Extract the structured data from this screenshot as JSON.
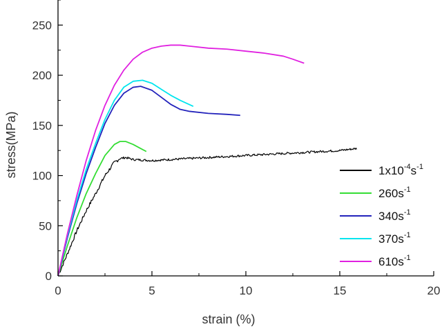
{
  "chart_data": {
    "type": "line",
    "title": "",
    "xlabel": "strain (%)",
    "ylabel": "stress(MPa)",
    "xlim": [
      0,
      20
    ],
    "ylim": [
      0,
      275
    ],
    "xticks": [
      0,
      5,
      10,
      15,
      20
    ],
    "yticks": [
      0,
      50,
      100,
      150,
      200,
      250
    ],
    "legend_position": "right",
    "grid": false,
    "series": [
      {
        "name_base": "1x10",
        "name_exp": "-4",
        "name_unit": "s",
        "name_unit_exp": "-1",
        "color": "#000000",
        "noisy": true,
        "x": [
          0,
          0.5,
          1.0,
          1.5,
          2.0,
          2.5,
          3.0,
          3.3,
          3.6,
          4.0,
          5.0,
          6.0,
          7.0,
          8.0,
          9.0,
          10.0,
          11.0,
          12.0,
          13.0,
          14.0,
          15.0,
          15.9
        ],
        "y": [
          0,
          22,
          45,
          65,
          82,
          100,
          113,
          117,
          118,
          116,
          115,
          116,
          117,
          118,
          119,
          120,
          121,
          122,
          123,
          124,
          125,
          127
        ]
      },
      {
        "name_base": "260",
        "name_unit": "s",
        "name_unit_exp": "-1",
        "color": "#33dd33",
        "x": [
          0,
          0.5,
          1.0,
          1.5,
          2.0,
          2.5,
          3.0,
          3.3,
          3.6,
          4.0,
          4.4,
          4.7
        ],
        "y": [
          0,
          30,
          58,
          82,
          102,
          120,
          131,
          134,
          134,
          131,
          127,
          124
        ]
      },
      {
        "name_base": "340",
        "name_unit": "s",
        "name_unit_exp": "-1",
        "color": "#2222bb",
        "x": [
          0,
          0.5,
          1.0,
          1.5,
          2.0,
          2.5,
          3.0,
          3.5,
          4.0,
          4.4,
          5.0,
          5.5,
          6.0,
          6.5,
          7.0,
          8.0,
          9.0,
          9.7
        ],
        "y": [
          0,
          38,
          72,
          102,
          128,
          152,
          170,
          182,
          188,
          189,
          185,
          178,
          171,
          166,
          164,
          162,
          161,
          160
        ]
      },
      {
        "name_base": "370",
        "name_unit": "s",
        "name_unit_exp": "-1",
        "color": "#00e5ee",
        "x": [
          0,
          0.5,
          1.0,
          1.5,
          2.0,
          2.5,
          3.0,
          3.5,
          4.0,
          4.5,
          5.0,
          5.5,
          6.0,
          6.5,
          7.2
        ],
        "y": [
          0,
          40,
          75,
          106,
          132,
          156,
          175,
          188,
          194,
          195,
          192,
          186,
          180,
          175,
          169
        ]
      },
      {
        "name_base": "610",
        "name_unit": "s",
        "name_unit_exp": "-1",
        "color": "#e020e0",
        "x": [
          0,
          0.5,
          1.0,
          1.5,
          2.0,
          2.5,
          3.0,
          3.5,
          4.0,
          4.5,
          5.0,
          5.5,
          6.0,
          6.5,
          7.0,
          8.0,
          9.0,
          10.0,
          11.0,
          12.0,
          12.5,
          13.1
        ],
        "y": [
          0,
          42,
          80,
          115,
          145,
          170,
          190,
          205,
          216,
          223,
          227,
          229,
          230,
          230,
          229,
          227,
          226,
          224,
          222,
          219,
          216,
          212
        ]
      }
    ]
  }
}
